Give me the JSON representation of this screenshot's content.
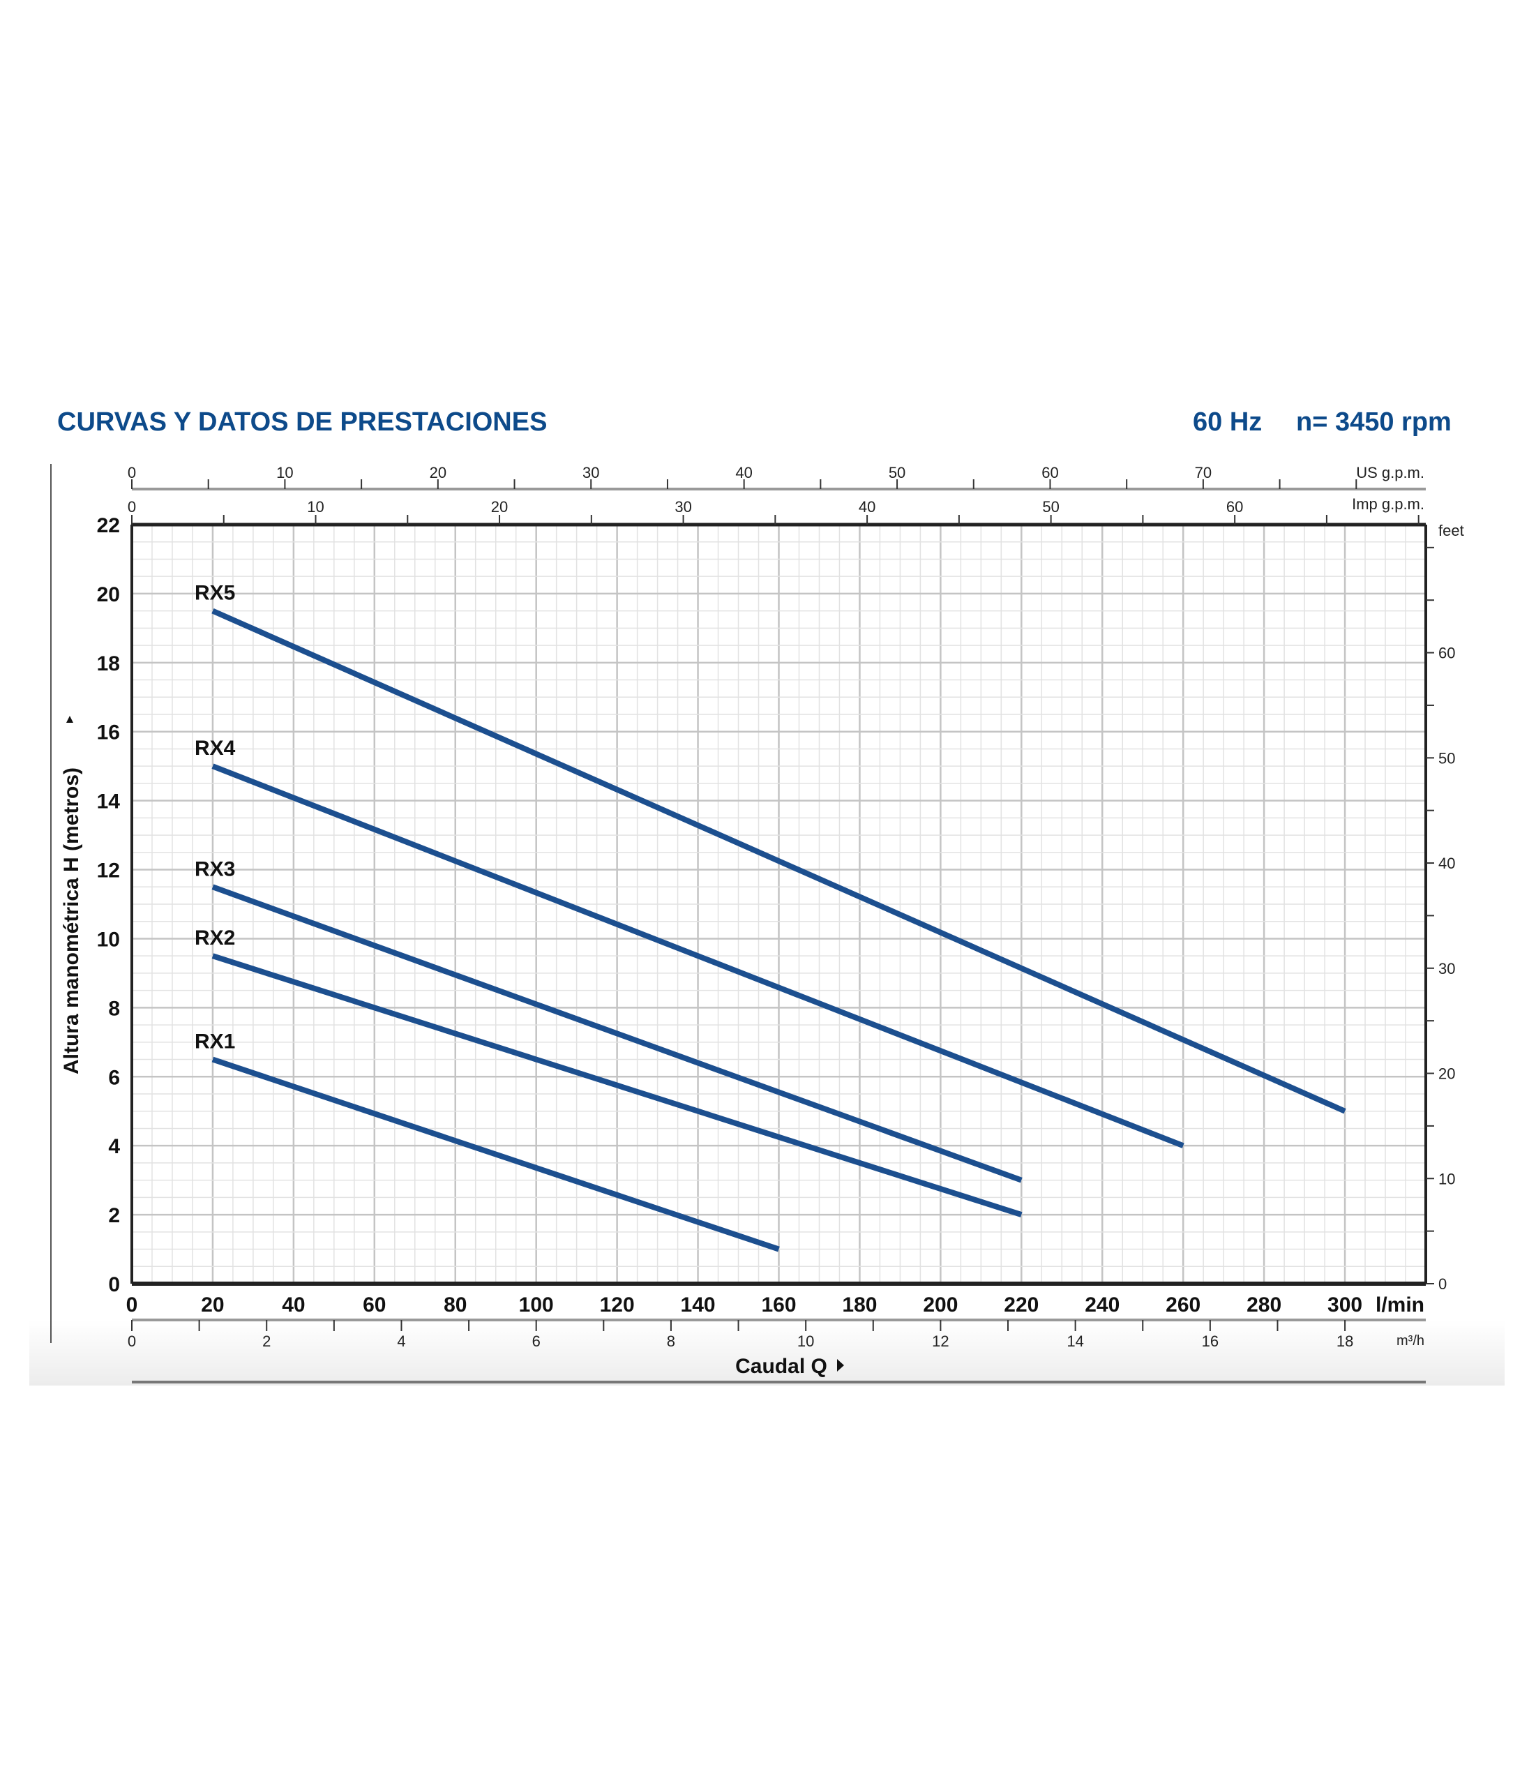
{
  "header": {
    "title": "CURVAS Y DATOS DE PRESTACIONES",
    "frequency": "60 Hz",
    "speed": "n= 3450 rpm"
  },
  "colors": {
    "title": "#0d4a8a",
    "curve": "#1c4f8f",
    "grid_major": "#c4c4c4",
    "grid_minor": "#e2e2e2"
  },
  "chart_data": {
    "type": "line",
    "title": "CURVAS Y DATOS DE PRESTACIONES",
    "xlabel": "Caudal Q",
    "ylabel": "Altura manométrica H (metros)",
    "xlim": [
      0,
      320
    ],
    "ylim": [
      0,
      22
    ],
    "grid": true,
    "x_ticks": [
      0,
      20,
      40,
      60,
      80,
      100,
      120,
      140,
      160,
      180,
      200,
      220,
      240,
      260,
      280,
      300
    ],
    "x_unit": "l/min",
    "y_ticks": [
      0,
      2,
      4,
      6,
      8,
      10,
      12,
      14,
      16,
      18,
      20,
      22
    ],
    "secondary_axes": {
      "us_gpm": {
        "unit": "US g.p.m.",
        "ticks": [
          0,
          10,
          20,
          30,
          40,
          50,
          60,
          70
        ]
      },
      "imp_gpm": {
        "unit": "Imp g.p.m.",
        "ticks": [
          0,
          10,
          20,
          30,
          40,
          50,
          60
        ]
      },
      "m3h": {
        "unit": "m³/h",
        "ticks": [
          0,
          2,
          4,
          6,
          8,
          10,
          12,
          14,
          16,
          18
        ]
      },
      "feet": {
        "unit": "feet",
        "ticks": [
          0,
          10,
          20,
          30,
          40,
          50,
          60
        ]
      }
    },
    "series": [
      {
        "name": "RX5",
        "x": [
          20,
          300
        ],
        "y": [
          19.5,
          5
        ]
      },
      {
        "name": "RX4",
        "x": [
          20,
          260
        ],
        "y": [
          15,
          4
        ]
      },
      {
        "name": "RX3",
        "x": [
          20,
          220
        ],
        "y": [
          11.5,
          3
        ]
      },
      {
        "name": "RX2",
        "x": [
          20,
          220
        ],
        "y": [
          9.5,
          2
        ]
      },
      {
        "name": "RX1",
        "x": [
          20,
          160
        ],
        "y": [
          6.5,
          1
        ]
      }
    ]
  }
}
